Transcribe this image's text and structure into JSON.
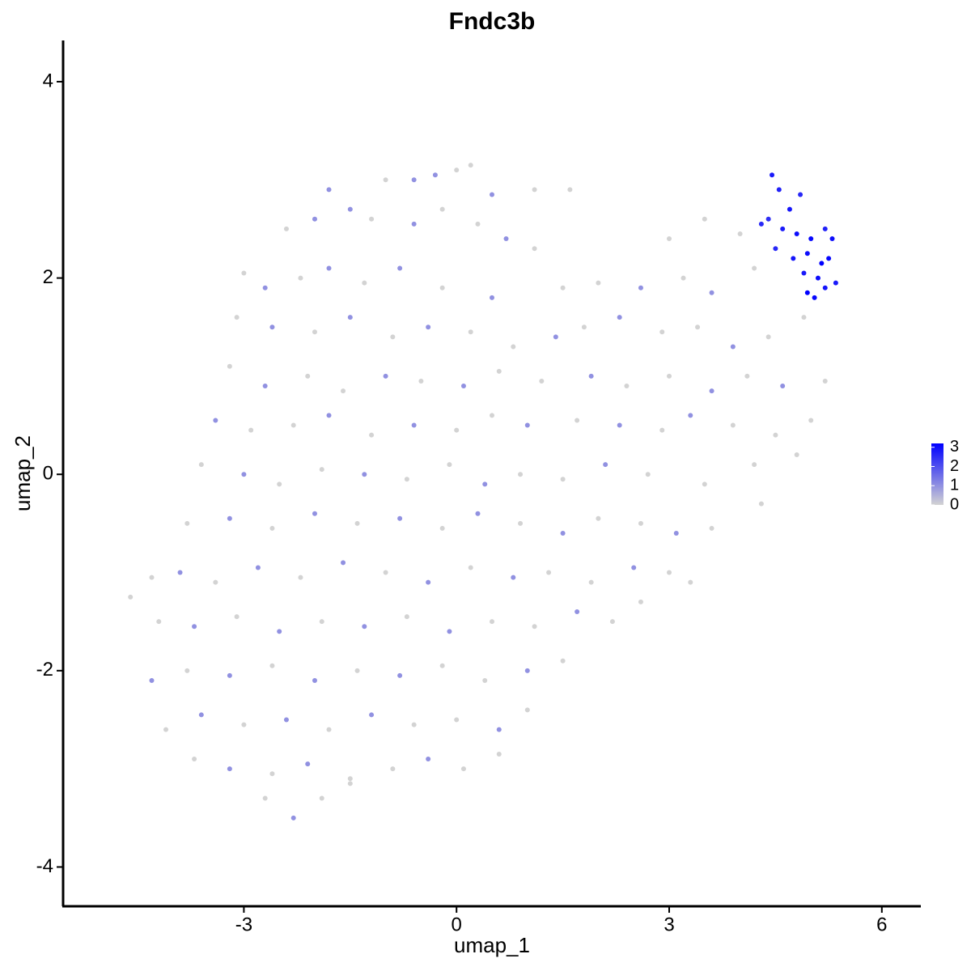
{
  "chart_data": {
    "type": "scatter",
    "title": "Fndc3b",
    "x_label": "umap_1",
    "y_label": "umap_2",
    "xlim": [
      -5.55,
      6.55
    ],
    "ylim": [
      -4.4,
      4.42
    ],
    "xticks": [
      -3,
      0,
      3,
      6
    ],
    "yticks": [
      -4,
      -2,
      0,
      2,
      4
    ],
    "color_low": "#d3d3d3",
    "color_high": "#0000ff",
    "clim": [
      0,
      3.2
    ],
    "cticks": [
      0,
      1,
      2,
      3
    ],
    "x": [
      -1.8,
      -1,
      -0.6,
      -0.3,
      0,
      0.2,
      0.5,
      1.1,
      1.6,
      -2.4,
      -2,
      -1.5,
      -1.2,
      -0.6,
      -0.2,
      0.3,
      0.7,
      1.1,
      3,
      3.5,
      4,
      -3,
      -2.7,
      -2.2,
      -1.8,
      -1.3,
      -0.8,
      -0.2,
      0.5,
      1.5,
      2,
      2.6,
      3.2,
      3.6,
      4.2,
      -3.1,
      -2.6,
      -2,
      -1.5,
      -0.9,
      -0.4,
      0.2,
      0.8,
      1.4,
      1.8,
      2.3,
      2.9,
      3.4,
      3.9,
      4.4,
      4.9,
      -3.2,
      -2.7,
      -2.1,
      -1.6,
      -1,
      -0.5,
      0.1,
      0.6,
      1.2,
      1.9,
      2.4,
      3,
      3.6,
      4.1,
      4.6,
      5.2,
      -3.4,
      -2.9,
      -2.3,
      -1.8,
      -1.2,
      -0.6,
      0,
      0.5,
      1,
      1.7,
      2.3,
      2.9,
      3.3,
      3.9,
      4.5,
      5,
      -3.6,
      -3,
      -2.5,
      -1.9,
      -1.3,
      -0.7,
      -0.1,
      0.4,
      0.9,
      1.5,
      2.1,
      2.7,
      3.5,
      4.2,
      4.8,
      -3.8,
      -3.2,
      -2.6,
      -2,
      -1.4,
      -0.8,
      -0.2,
      0.3,
      0.9,
      1.5,
      2,
      2.6,
      3.1,
      3.6,
      4.3,
      -4.6,
      -4.3,
      -3.9,
      -3.4,
      -2.8,
      -2.2,
      -1.6,
      -1,
      -0.4,
      0.2,
      0.8,
      1.3,
      1.9,
      2.5,
      3,
      3.3,
      -4.2,
      -3.7,
      -3.1,
      -2.5,
      -1.9,
      -1.3,
      -0.7,
      -0.1,
      0.5,
      1.1,
      1.7,
      2.2,
      2.6,
      -4.3,
      -3.8,
      -3.2,
      -2.6,
      -2,
      -1.4,
      -0.8,
      -0.2,
      0.4,
      1,
      1.5,
      -4.1,
      -3.6,
      -3,
      -2.4,
      -1.8,
      -1.2,
      -0.6,
      0,
      0.6,
      1,
      -3.7,
      -3.2,
      -2.6,
      -2.1,
      -1.5,
      -0.9,
      -0.4,
      0.1,
      0.6,
      -2.7,
      -2.3,
      -1.9,
      -1.5,
      4.45,
      4.55,
      4.7,
      4.85,
      4.4,
      4.6,
      4.8,
      5,
      5.2,
      5.3,
      4.5,
      4.75,
      4.95,
      5.15,
      5.25,
      4.9,
      5.1,
      5.35,
      4.95,
      5.05,
      4.3,
      5.2
    ],
    "y": [
      2.9,
      3,
      3,
      3.05,
      3.1,
      3.15,
      2.85,
      2.9,
      2.9,
      2.5,
      2.6,
      2.7,
      2.6,
      2.55,
      2.7,
      2.55,
      2.4,
      2.3,
      2.4,
      2.6,
      2.45,
      2.05,
      1.9,
      2,
      2.1,
      1.95,
      2.1,
      1.9,
      1.8,
      1.9,
      1.95,
      1.9,
      2,
      1.85,
      2.1,
      1.6,
      1.5,
      1.45,
      1.6,
      1.4,
      1.5,
      1.45,
      1.3,
      1.4,
      1.5,
      1.6,
      1.45,
      1.5,
      1.3,
      1.4,
      1.6,
      1.1,
      0.9,
      1,
      0.85,
      1,
      0.95,
      0.9,
      1.05,
      0.95,
      1,
      0.9,
      1,
      0.85,
      1,
      0.9,
      0.95,
      0.55,
      0.45,
      0.5,
      0.6,
      0.4,
      0.5,
      0.45,
      0.6,
      0.5,
      0.55,
      0.5,
      0.45,
      0.6,
      0.5,
      0.4,
      0.55,
      0.1,
      0,
      -0.1,
      0.05,
      0,
      -0.05,
      0.1,
      -0.1,
      0,
      -0.05,
      0.1,
      0,
      -0.1,
      0.1,
      0.2,
      -0.5,
      -0.45,
      -0.55,
      -0.4,
      -0.5,
      -0.45,
      -0.55,
      -0.4,
      -0.5,
      -0.6,
      -0.45,
      -0.5,
      -0.6,
      -0.55,
      -0.3,
      -1.25,
      -1.05,
      -1,
      -1.1,
      -0.95,
      -1.05,
      -0.9,
      -1,
      -1.1,
      -0.95,
      -1.05,
      -1,
      -1.1,
      -0.95,
      -1,
      -1.1,
      -1.5,
      -1.55,
      -1.45,
      -1.6,
      -1.5,
      -1.55,
      -1.45,
      -1.6,
      -1.5,
      -1.55,
      -1.4,
      -1.5,
      -1.3,
      -2.1,
      -2,
      -2.05,
      -1.95,
      -2.1,
      -2,
      -2.05,
      -1.95,
      -2.1,
      -2,
      -1.9,
      -2.6,
      -2.45,
      -2.55,
      -2.5,
      -2.6,
      -2.45,
      -2.55,
      -2.5,
      -2.6,
      -2.4,
      -2.9,
      -3,
      -3.05,
      -2.95,
      -3.1,
      -3,
      -2.9,
      -3,
      -2.85,
      -3.3,
      -3.5,
      -3.3,
      -3.15,
      3.05,
      2.9,
      2.7,
      2.85,
      2.6,
      2.5,
      2.45,
      2.4,
      2.5,
      2.4,
      2.3,
      2.2,
      2.25,
      2.15,
      2.2,
      2.05,
      2,
      1.95,
      1.85,
      1.8,
      2.55,
      1.9
    ],
    "values": [
      1,
      0,
      1,
      1,
      0,
      0,
      1,
      0,
      0,
      0,
      1,
      1,
      0,
      1,
      0,
      0,
      1,
      0,
      0,
      0,
      0,
      0,
      1,
      0,
      1,
      0,
      1,
      0,
      1,
      0,
      0,
      1,
      0,
      1,
      0,
      0,
      1,
      0,
      1,
      0,
      1,
      0,
      0,
      1,
      0,
      1,
      0,
      0,
      1,
      0,
      0,
      0,
      1,
      0,
      0,
      1,
      0,
      1,
      0,
      0,
      1,
      0,
      0,
      1,
      0,
      1,
      0,
      1,
      0,
      0,
      1,
      0,
      1,
      0,
      0,
      1,
      0,
      1,
      0,
      1,
      0,
      0,
      0,
      0,
      1,
      0,
      0,
      1,
      0,
      0,
      1,
      0,
      0,
      1,
      0,
      0,
      0,
      0,
      0,
      1,
      0,
      1,
      0,
      1,
      0,
      1,
      0,
      1,
      0,
      0,
      1,
      0,
      0,
      0,
      0,
      1,
      0,
      1,
      0,
      1,
      0,
      1,
      0,
      1,
      0,
      0,
      1,
      0,
      0,
      0,
      1,
      0,
      1,
      0,
      1,
      0,
      1,
      0,
      0,
      1,
      0,
      0,
      1,
      0,
      1,
      0,
      1,
      0,
      1,
      0,
      0,
      1,
      0,
      0,
      1,
      0,
      1,
      0,
      1,
      0,
      0,
      1,
      0,
      0,
      1,
      0,
      1,
      0,
      0,
      1,
      0,
      0,
      0,
      1,
      0,
      0,
      2.8,
      2.7,
      2.9,
      2.6,
      2.5,
      2.8,
      3,
      3.1,
      2.7,
      3,
      2.6,
      2.9,
      3,
      3.2,
      3.1,
      2.8,
      3,
      2.8,
      3.2,
      3.1,
      2.6,
      2.9
    ]
  }
}
